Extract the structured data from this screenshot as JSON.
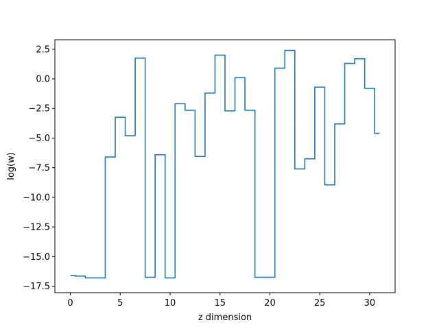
{
  "chart_data": {
    "type": "line",
    "drawstyle": "steps-mid",
    "title": "",
    "xlabel": "z dimension",
    "ylabel": "log(w)",
    "xlim": [
      -1.55,
      32.55
    ],
    "ylim": [
      -18.05,
      3.3
    ],
    "xticks": [
      0,
      5,
      10,
      15,
      20,
      25,
      30
    ],
    "yticks": [
      2.5,
      0.0,
      -2.5,
      -5.0,
      -7.5,
      -10.0,
      -12.5,
      -15.0,
      -17.5
    ],
    "ytick_labels": [
      "2.5",
      "0.0",
      "−2.5",
      "−5.0",
      "−7.5",
      "−10.0",
      "−12.5",
      "−15.0",
      "−17.5"
    ],
    "grid": false,
    "line_color": "#1f77b4",
    "series": [
      {
        "x": [
          0,
          1,
          2,
          3,
          4,
          5,
          6,
          7,
          8,
          9,
          10,
          11,
          12,
          13,
          14,
          15,
          16,
          17,
          18,
          19,
          20,
          21,
          22,
          23,
          24,
          25,
          26,
          27,
          28,
          29,
          30,
          31
        ],
        "values": [
          -16.6,
          -16.65,
          -16.8,
          -16.8,
          -6.6,
          -3.25,
          -4.8,
          1.75,
          -16.75,
          -6.4,
          -16.8,
          -2.1,
          -2.65,
          -6.55,
          -1.2,
          2.0,
          -2.7,
          0.1,
          -2.65,
          -16.75,
          -16.75,
          0.9,
          2.4,
          -7.6,
          -6.75,
          -0.7,
          -8.95,
          -3.8,
          1.3,
          1.7,
          -0.8,
          -4.6
        ]
      }
    ]
  }
}
